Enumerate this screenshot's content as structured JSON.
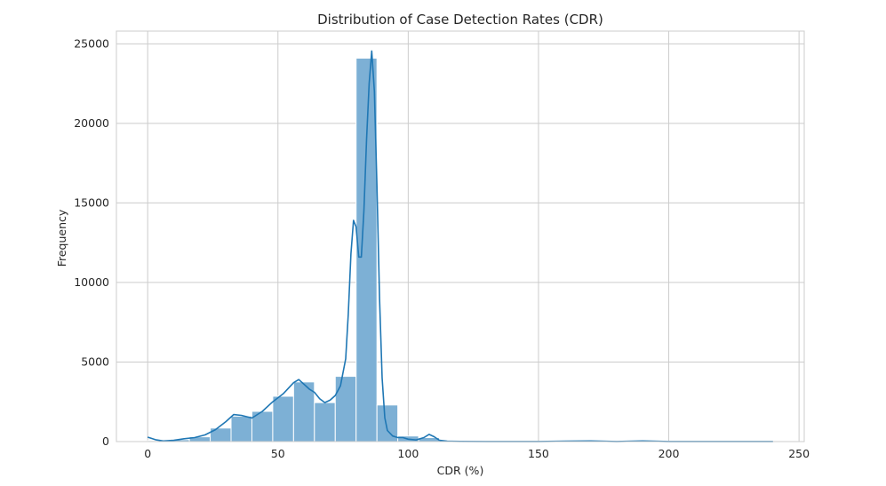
{
  "chart_data": {
    "type": "bar",
    "title": "Distribution of Case Detection Rates (CDR)",
    "xlabel": "CDR (%)",
    "ylabel": "Frequency",
    "xlim": [
      -12,
      252
    ],
    "ylim": [
      0,
      25800
    ],
    "xticks": [
      0,
      50,
      100,
      150,
      200,
      250
    ],
    "yticks": [
      0,
      5000,
      10000,
      15000,
      20000,
      25000
    ],
    "grid": true,
    "bin_width": 8,
    "bins": [
      {
        "x0": 0,
        "x1": 8,
        "count": 60
      },
      {
        "x0": 8,
        "x1": 16,
        "count": 120
      },
      {
        "x0": 16,
        "x1": 24,
        "count": 300
      },
      {
        "x0": 24,
        "x1": 32,
        "count": 850
      },
      {
        "x0": 32,
        "x1": 40,
        "count": 1600
      },
      {
        "x0": 40,
        "x1": 48,
        "count": 1900
      },
      {
        "x0": 48,
        "x1": 56,
        "count": 2850
      },
      {
        "x0": 56,
        "x1": 64,
        "count": 3750
      },
      {
        "x0": 64,
        "x1": 72,
        "count": 2450
      },
      {
        "x0": 72,
        "x1": 80,
        "count": 4100
      },
      {
        "x0": 80,
        "x1": 88,
        "count": 24100
      },
      {
        "x0": 88,
        "x1": 96,
        "count": 2300
      },
      {
        "x0": 96,
        "x1": 104,
        "count": 350
      },
      {
        "x0": 104,
        "x1": 112,
        "count": 250
      },
      {
        "x0": 112,
        "x1": 120,
        "count": 30
      },
      {
        "x0": 120,
        "x1": 128,
        "count": 20
      },
      {
        "x0": 128,
        "x1": 136,
        "count": 15
      },
      {
        "x0": 136,
        "x1": 144,
        "count": 10
      },
      {
        "x0": 144,
        "x1": 152,
        "count": 10
      },
      {
        "x0": 152,
        "x1": 160,
        "count": 10
      },
      {
        "x0": 160,
        "x1": 168,
        "count": 15
      },
      {
        "x0": 168,
        "x1": 176,
        "count": 30
      },
      {
        "x0": 176,
        "x1": 184,
        "count": 15
      },
      {
        "x0": 184,
        "x1": 192,
        "count": 20
      },
      {
        "x0": 192,
        "x1": 200,
        "count": 15
      },
      {
        "x0": 200,
        "x1": 208,
        "count": 10
      },
      {
        "x0": 208,
        "x1": 216,
        "count": 10
      },
      {
        "x0": 216,
        "x1": 224,
        "count": 10
      },
      {
        "x0": 224,
        "x1": 232,
        "count": 10
      },
      {
        "x0": 232,
        "x1": 240,
        "count": 10
      }
    ],
    "kde": {
      "x": [
        0,
        3,
        6,
        10,
        14,
        18,
        22,
        26,
        30,
        33,
        36,
        40,
        44,
        48,
        52,
        56,
        58,
        60,
        62,
        64,
        66,
        68,
        70,
        72,
        74,
        76,
        77,
        78,
        79,
        80,
        81,
        82,
        83,
        84,
        85,
        86,
        87,
        88,
        89,
        90,
        91,
        92,
        94,
        96,
        98,
        100,
        103,
        106,
        108,
        110,
        112,
        115,
        120,
        130,
        150,
        170,
        180,
        190,
        200,
        220,
        240
      ],
      "y": [
        280,
        120,
        40,
        80,
        180,
        250,
        420,
        750,
        1250,
        1700,
        1650,
        1480,
        1900,
        2500,
        3000,
        3700,
        3900,
        3600,
        3300,
        3100,
        2700,
        2450,
        2600,
        2900,
        3500,
        5200,
        8000,
        11800,
        13900,
        13500,
        11600,
        11600,
        14500,
        19000,
        22500,
        24550,
        22000,
        16000,
        9000,
        4000,
        1500,
        700,
        350,
        250,
        250,
        150,
        100,
        250,
        450,
        300,
        80,
        20,
        10,
        5,
        5,
        40,
        5,
        40,
        5,
        5,
        5
      ]
    },
    "bar_color": "#7db0d5",
    "line_color": "#1f77b4",
    "grid_color": "#cccccc",
    "axis_color": "#cccccc"
  }
}
